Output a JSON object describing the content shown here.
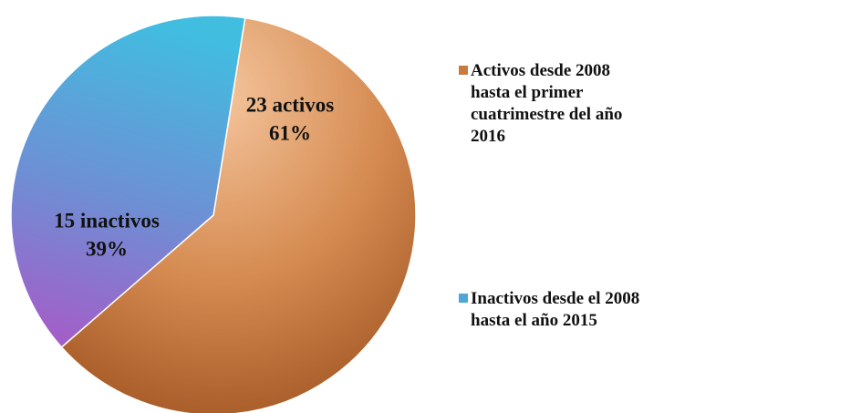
{
  "chart_data": {
    "type": "pie",
    "categories": [
      "Activos desde 2008 hasta el primer cuatrimestre del año 2016",
      "Inactivos desde el 2008 hasta el año 2015"
    ],
    "values": [
      61,
      39
    ],
    "value_labels": [
      "61%",
      "39%"
    ],
    "slice_labels": [
      "23 activos",
      "15 inactivos"
    ],
    "colors": [
      "#c97a3e",
      "#4fa6d6"
    ],
    "legend": "right"
  }
}
